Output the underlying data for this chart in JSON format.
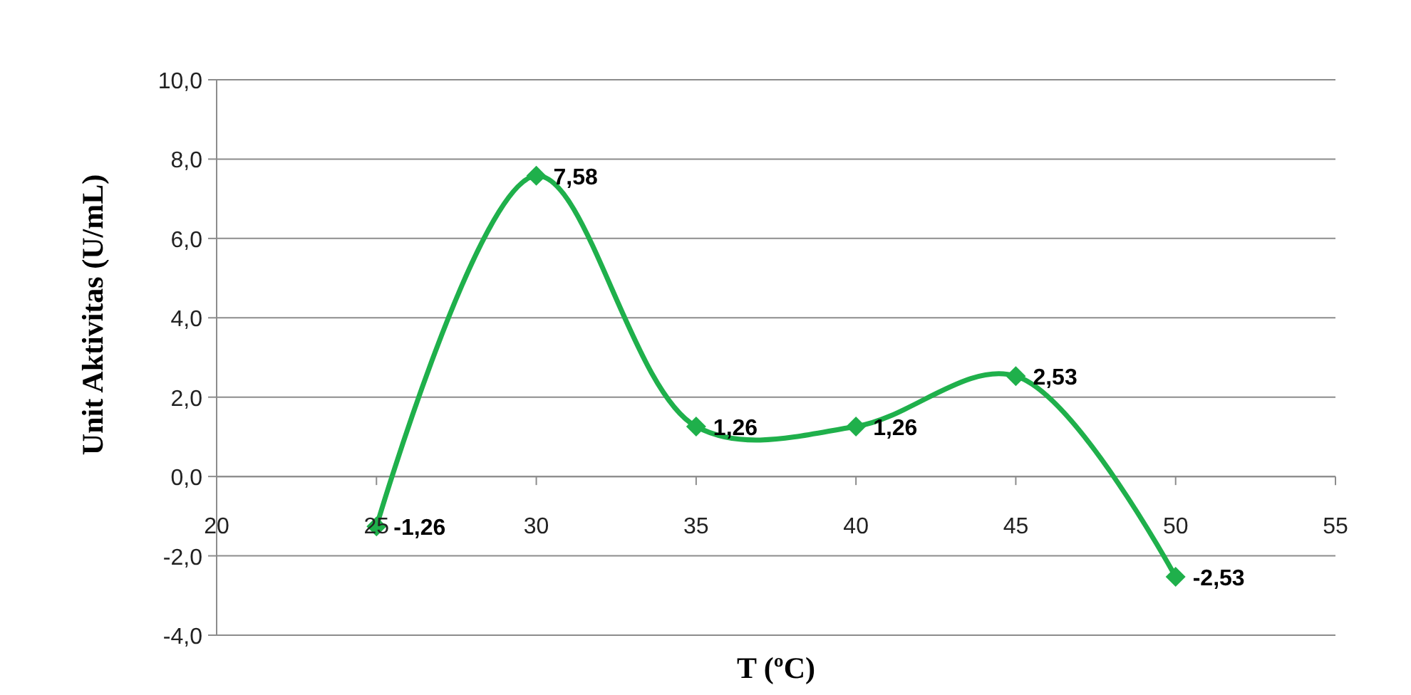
{
  "chart_data": {
    "type": "line",
    "xlabel": "T (ºC)",
    "ylabel": "Unit Aktivitas (U/mL)",
    "x": [
      25,
      30,
      35,
      40,
      45,
      50
    ],
    "series": [
      {
        "color": "#1fb04b",
        "values": [
          -1.26,
          7.58,
          1.26,
          1.26,
          2.53,
          -2.53
        ]
      }
    ],
    "value_labels": [
      "-1,26",
      "7,58",
      "1,26",
      "1,26",
      "2,53",
      "-2,53"
    ],
    "xlim": [
      20,
      55
    ],
    "xticks": [
      20,
      25,
      30,
      35,
      40,
      45,
      50,
      55
    ],
    "ylim": [
      -4,
      10
    ],
    "yticks": [
      {
        "value": -4,
        "label": "-4,0"
      },
      {
        "value": -2,
        "label": "-2,0"
      },
      {
        "value": 0,
        "label": "0,0"
      },
      {
        "value": 2,
        "label": "2,0"
      },
      {
        "value": 4,
        "label": "4,0"
      },
      {
        "value": 6,
        "label": "6,0"
      },
      {
        "value": 8,
        "label": "8,0"
      },
      {
        "value": 10,
        "label": "10,0"
      }
    ],
    "grid": "y",
    "marker": "diamond",
    "line_style": "solid"
  }
}
